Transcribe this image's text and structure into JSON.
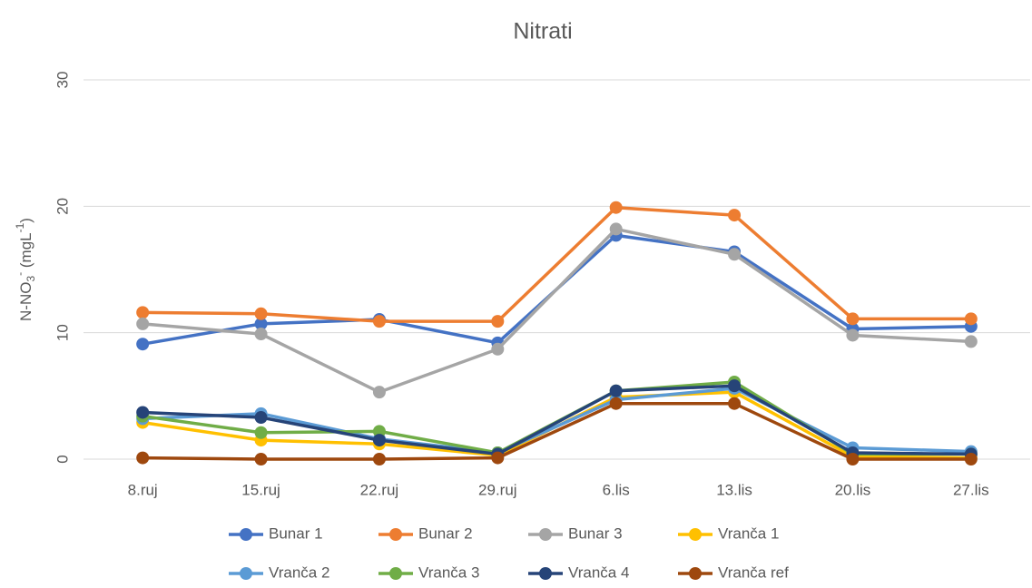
{
  "chart_data": {
    "type": "line",
    "title": "Nitrati",
    "ylabel": [
      "N-NO",
      "3",
      "-",
      " (mgL",
      "-1",
      ")"
    ],
    "ylabel_scripts": [
      "normal",
      "sub",
      "super",
      "normal",
      "super",
      "normal"
    ],
    "categories": [
      "8.ruj",
      "15.ruj",
      "22.ruj",
      "29.ruj",
      "6.lis",
      "13.lis",
      "20.lis",
      "27.lis"
    ],
    "ylim": [
      0,
      30
    ],
    "yticks": [
      0,
      10,
      20,
      30
    ],
    "grid": true,
    "legend": "bottom",
    "series": [
      {
        "name": "Bunar 1",
        "color": "#4472c4",
        "values": [
          9.1,
          10.7,
          11.05,
          9.2,
          17.7,
          16.4,
          10.3,
          10.5
        ]
      },
      {
        "name": "Bunar 2",
        "color": "#ed7d31",
        "values": [
          11.6,
          11.5,
          10.9,
          10.9,
          19.9,
          19.3,
          11.1,
          11.1
        ]
      },
      {
        "name": "Bunar 3",
        "color": "#a5a5a5",
        "values": [
          10.7,
          9.9,
          5.3,
          8.7,
          18.2,
          16.2,
          9.8,
          9.3
        ]
      },
      {
        "name": "Vranča 1",
        "color": "#ffc000",
        "values": [
          2.9,
          1.5,
          1.2,
          0.3,
          4.9,
          5.3,
          0.2,
          0.1
        ]
      },
      {
        "name": "Vranča 2",
        "color": "#5b9bd5",
        "values": [
          3.2,
          3.6,
          1.6,
          0.5,
          4.7,
          5.6,
          0.9,
          0.6
        ]
      },
      {
        "name": "Vranča 3",
        "color": "#70ad47",
        "values": [
          3.4,
          2.1,
          2.2,
          0.5,
          5.4,
          6.1,
          0.4,
          0.4
        ]
      },
      {
        "name": "Vranča 4",
        "color": "#264478",
        "values": [
          3.7,
          3.3,
          1.5,
          0.4,
          5.4,
          5.8,
          0.5,
          0.4
        ]
      },
      {
        "name": "Vranča ref",
        "color": "#9e480e",
        "values": [
          0.1,
          0,
          0,
          0.1,
          4.4,
          4.4,
          0,
          0
        ]
      }
    ]
  }
}
